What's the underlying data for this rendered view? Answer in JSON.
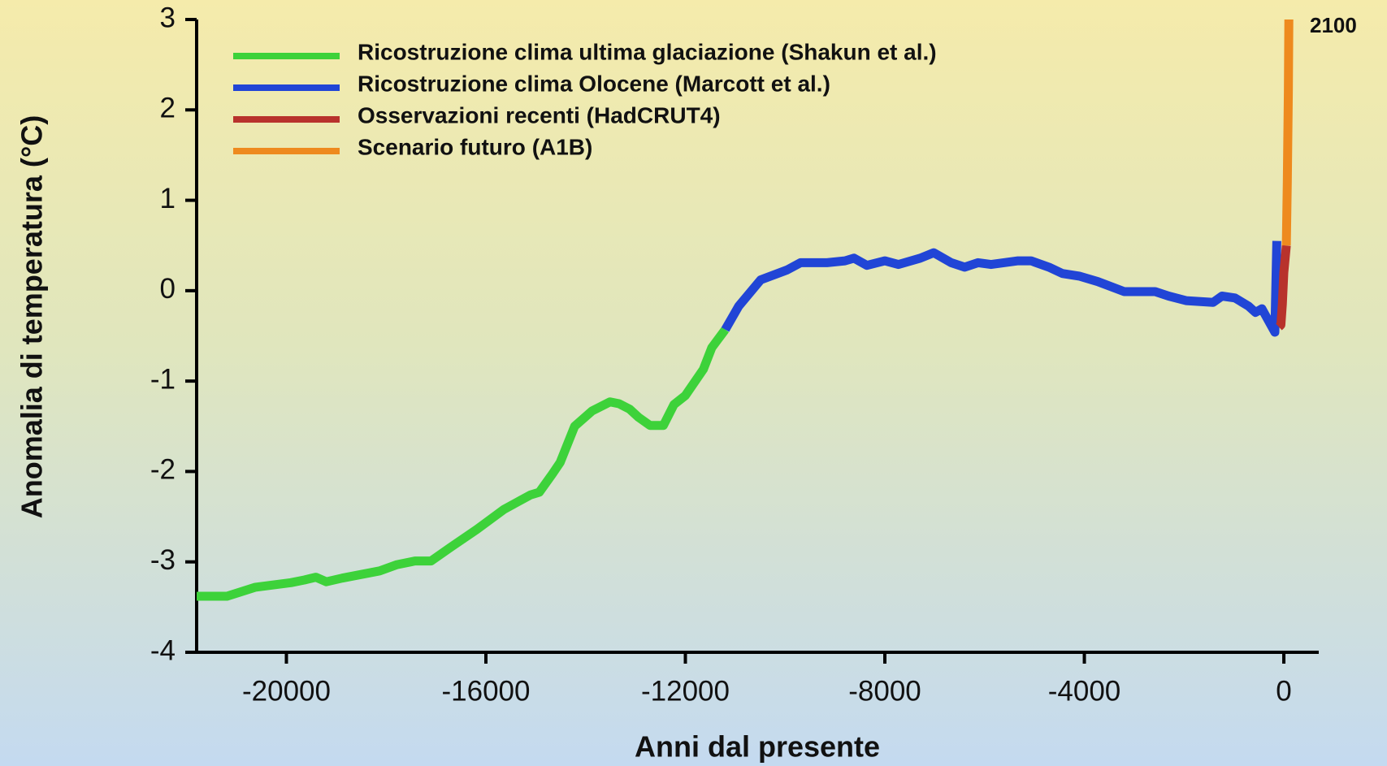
{
  "chart_data": {
    "type": "line",
    "xlabel": "Anni dal presente",
    "ylabel": "Anomalia di temperatura (°C)",
    "annotation": "2100",
    "xlim": [
      -21800,
      700
    ],
    "ylim": [
      -4,
      3
    ],
    "xticks": [
      -20000,
      -16000,
      -12000,
      -8000,
      -4000,
      0
    ],
    "yticks": [
      -4,
      -3,
      -2,
      -1,
      0,
      1,
      2,
      3
    ],
    "grid": false,
    "legend": "upper left",
    "series": [
      {
        "name": "Ricostruzione clima ultima glaciazione (Shakun et al.)",
        "color": "#3dd23a",
        "x": [
          -21800,
          -21190,
          -20620,
          -19910,
          -19640,
          -19410,
          -19200,
          -18880,
          -18130,
          -17780,
          -17420,
          -17100,
          -16710,
          -16180,
          -15640,
          -15110,
          -14930,
          -14670,
          -14510,
          -14220,
          -13870,
          -13510,
          -13330,
          -13120,
          -12940,
          -12710,
          -12440,
          -12230,
          -12000,
          -11640,
          -11470,
          -11200
        ],
        "values": [
          -3.38,
          -3.38,
          -3.28,
          -3.23,
          -3.2,
          -3.17,
          -3.22,
          -3.18,
          -3.1,
          -3.03,
          -2.99,
          -2.99,
          -2.84,
          -2.64,
          -2.42,
          -2.26,
          -2.23,
          -2.03,
          -1.9,
          -1.5,
          -1.33,
          -1.23,
          -1.25,
          -1.31,
          -1.4,
          -1.49,
          -1.49,
          -1.26,
          -1.16,
          -0.87,
          -0.63,
          -0.43
        ]
      },
      {
        "name": "Ricostruzione clima Olocene (Marcott et al.)",
        "color": "#2145d6",
        "x": [
          -11200,
          -10930,
          -10490,
          -9960,
          -9690,
          -9160,
          -8800,
          -8620,
          -8360,
          -8000,
          -7730,
          -7290,
          -7020,
          -6670,
          -6400,
          -6130,
          -5870,
          -5330,
          -5070,
          -4710,
          -4440,
          -4090,
          -3730,
          -3200,
          -2580,
          -2310,
          -1960,
          -1420,
          -1240,
          -980,
          -710,
          -570,
          -440,
          -180,
          -140
        ],
        "values": [
          -0.43,
          -0.17,
          0.12,
          0.23,
          0.31,
          0.31,
          0.33,
          0.36,
          0.28,
          0.33,
          0.29,
          0.36,
          0.42,
          0.31,
          0.26,
          0.31,
          0.29,
          0.33,
          0.33,
          0.26,
          0.19,
          0.16,
          0.1,
          -0.01,
          -0.01,
          -0.06,
          -0.11,
          -0.13,
          -0.06,
          -0.08,
          -0.17,
          -0.24,
          -0.2,
          -0.46,
          0.55
        ]
      },
      {
        "name": "Osservazioni recenti (HadCRUT4)",
        "color": "#b8322c",
        "x": [
          -100,
          -60,
          -30,
          0,
          50
        ],
        "values": [
          -0.4,
          -0.38,
          -0.15,
          0.2,
          0.5
        ]
      },
      {
        "name": "Scenario futuro (A1B)",
        "color": "#ee8a1e",
        "x": [
          50,
          70,
          90,
          100
        ],
        "values": [
          0.5,
          1.2,
          2.2,
          3
        ]
      }
    ]
  }
}
